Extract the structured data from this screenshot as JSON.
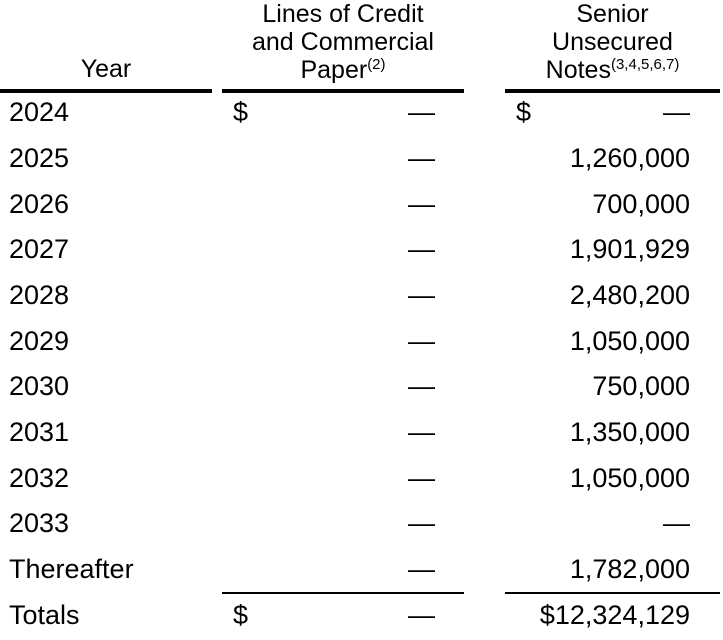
{
  "headers": {
    "year": "Year",
    "loc_line1": "Lines of Credit",
    "loc_line2": "and Commercial",
    "loc_line3": "Paper",
    "loc_note": "(2)",
    "sun_line1": "Senior",
    "sun_line2": "Unsecured",
    "sun_line3": "Notes",
    "sun_note": "(3,4,5,6,7)"
  },
  "rows": [
    {
      "year": "2024",
      "loc_currency": "$",
      "loc": "—",
      "sun_currency": "$",
      "sun": "—"
    },
    {
      "year": "2025",
      "loc_currency": "",
      "loc": "—",
      "sun_currency": "",
      "sun": "1,260,000"
    },
    {
      "year": "2026",
      "loc_currency": "",
      "loc": "—",
      "sun_currency": "",
      "sun": "700,000"
    },
    {
      "year": "2027",
      "loc_currency": "",
      "loc": "—",
      "sun_currency": "",
      "sun": "1,901,929"
    },
    {
      "year": "2028",
      "loc_currency": "",
      "loc": "—",
      "sun_currency": "",
      "sun": "2,480,200"
    },
    {
      "year": "2029",
      "loc_currency": "",
      "loc": "—",
      "sun_currency": "",
      "sun": "1,050,000"
    },
    {
      "year": "2030",
      "loc_currency": "",
      "loc": "—",
      "sun_currency": "",
      "sun": "750,000"
    },
    {
      "year": "2031",
      "loc_currency": "",
      "loc": "—",
      "sun_currency": "",
      "sun": "1,350,000"
    },
    {
      "year": "2032",
      "loc_currency": "",
      "loc": "—",
      "sun_currency": "",
      "sun": "1,050,000"
    },
    {
      "year": "2033",
      "loc_currency": "",
      "loc": "—",
      "sun_currency": "",
      "sun": "—"
    },
    {
      "year": "Thereafter",
      "loc_currency": "",
      "loc": "—",
      "sun_currency": "",
      "sun": "1,782,000"
    }
  ],
  "totals": {
    "label": "Totals",
    "loc_currency": "$",
    "loc": "—",
    "sun": "$12,324,129"
  }
}
